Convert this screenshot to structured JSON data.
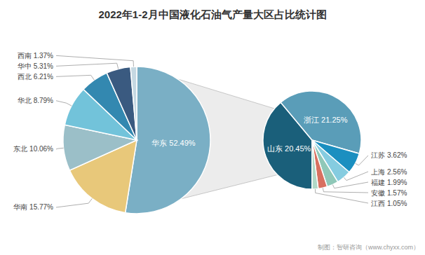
{
  "chart_data": [
    {
      "type": "pie",
      "title": "2022年1-2月中国液化石油气产量大区占比统计图",
      "annotations": [
        "制图：智研咨询（www.chyxx.com）"
      ],
      "categories": [
        "华东",
        "华南",
        "东北",
        "华北",
        "西北",
        "华中",
        "西南"
      ],
      "values": [
        52.49,
        15.77,
        10.06,
        8.79,
        6.21,
        5.31,
        1.37
      ],
      "value_labels": [
        "52.49%",
        "15.77%",
        "10.06%",
        "8.79%",
        "6.21%",
        "5.31%",
        "1.37%"
      ],
      "colors": [
        "#7aafc5",
        "#e8c87a",
        "#9bbfc8",
        "#72c3da",
        "#3388b0",
        "#3a5a80",
        "#c5d8e2"
      ],
      "data_labels": true
    },
    {
      "type": "pie",
      "categories": [
        "山东",
        "浙江",
        "江苏",
        "上海",
        "福建",
        "安徽",
        "江西"
      ],
      "values": [
        20.45,
        21.25,
        3.62,
        2.56,
        1.99,
        1.57,
        1.05
      ],
      "value_labels": [
        "20.45%",
        "21.25%",
        "3.62%",
        "2.56%",
        "1.99%",
        "1.57%",
        "1.05%"
      ],
      "colors": [
        "#1a5f7a",
        "#5a9db8",
        "#1b8fc0",
        "#85cce0",
        "#8fc8b8",
        "#d87060",
        "#b0d8c8"
      ],
      "data_labels": true
    }
  ]
}
